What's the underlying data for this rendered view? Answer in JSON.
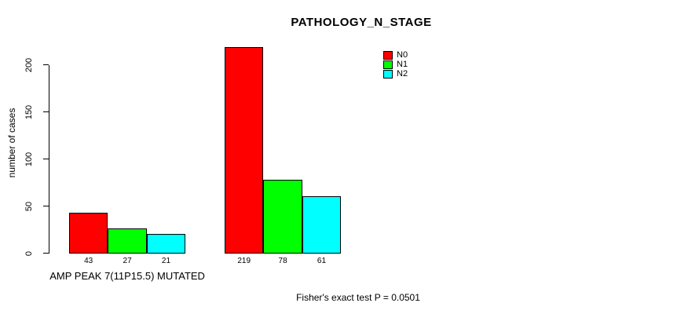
{
  "chart_data": {
    "type": "bar",
    "title": "PATHOLOGY_N_STAGE",
    "ylabel": "number of cases",
    "xlabel": "",
    "yticks": [
      0,
      50,
      100,
      150,
      200
    ],
    "ylim": [
      0,
      220
    ],
    "grid": false,
    "legend_position": "top-right",
    "series": [
      {
        "name": "N0",
        "color": "#ff0000"
      },
      {
        "name": "N1",
        "color": "#00ff00"
      },
      {
        "name": "N2",
        "color": "#00ffff"
      }
    ],
    "groups": [
      {
        "label": "AMP PEAK 7(11P15.5) MUTATED",
        "values": [
          43,
          27,
          21
        ]
      },
      {
        "label": "",
        "values": [
          219,
          78,
          61
        ]
      }
    ],
    "annotation": "Fisher's exact test P = 0.0501"
  }
}
